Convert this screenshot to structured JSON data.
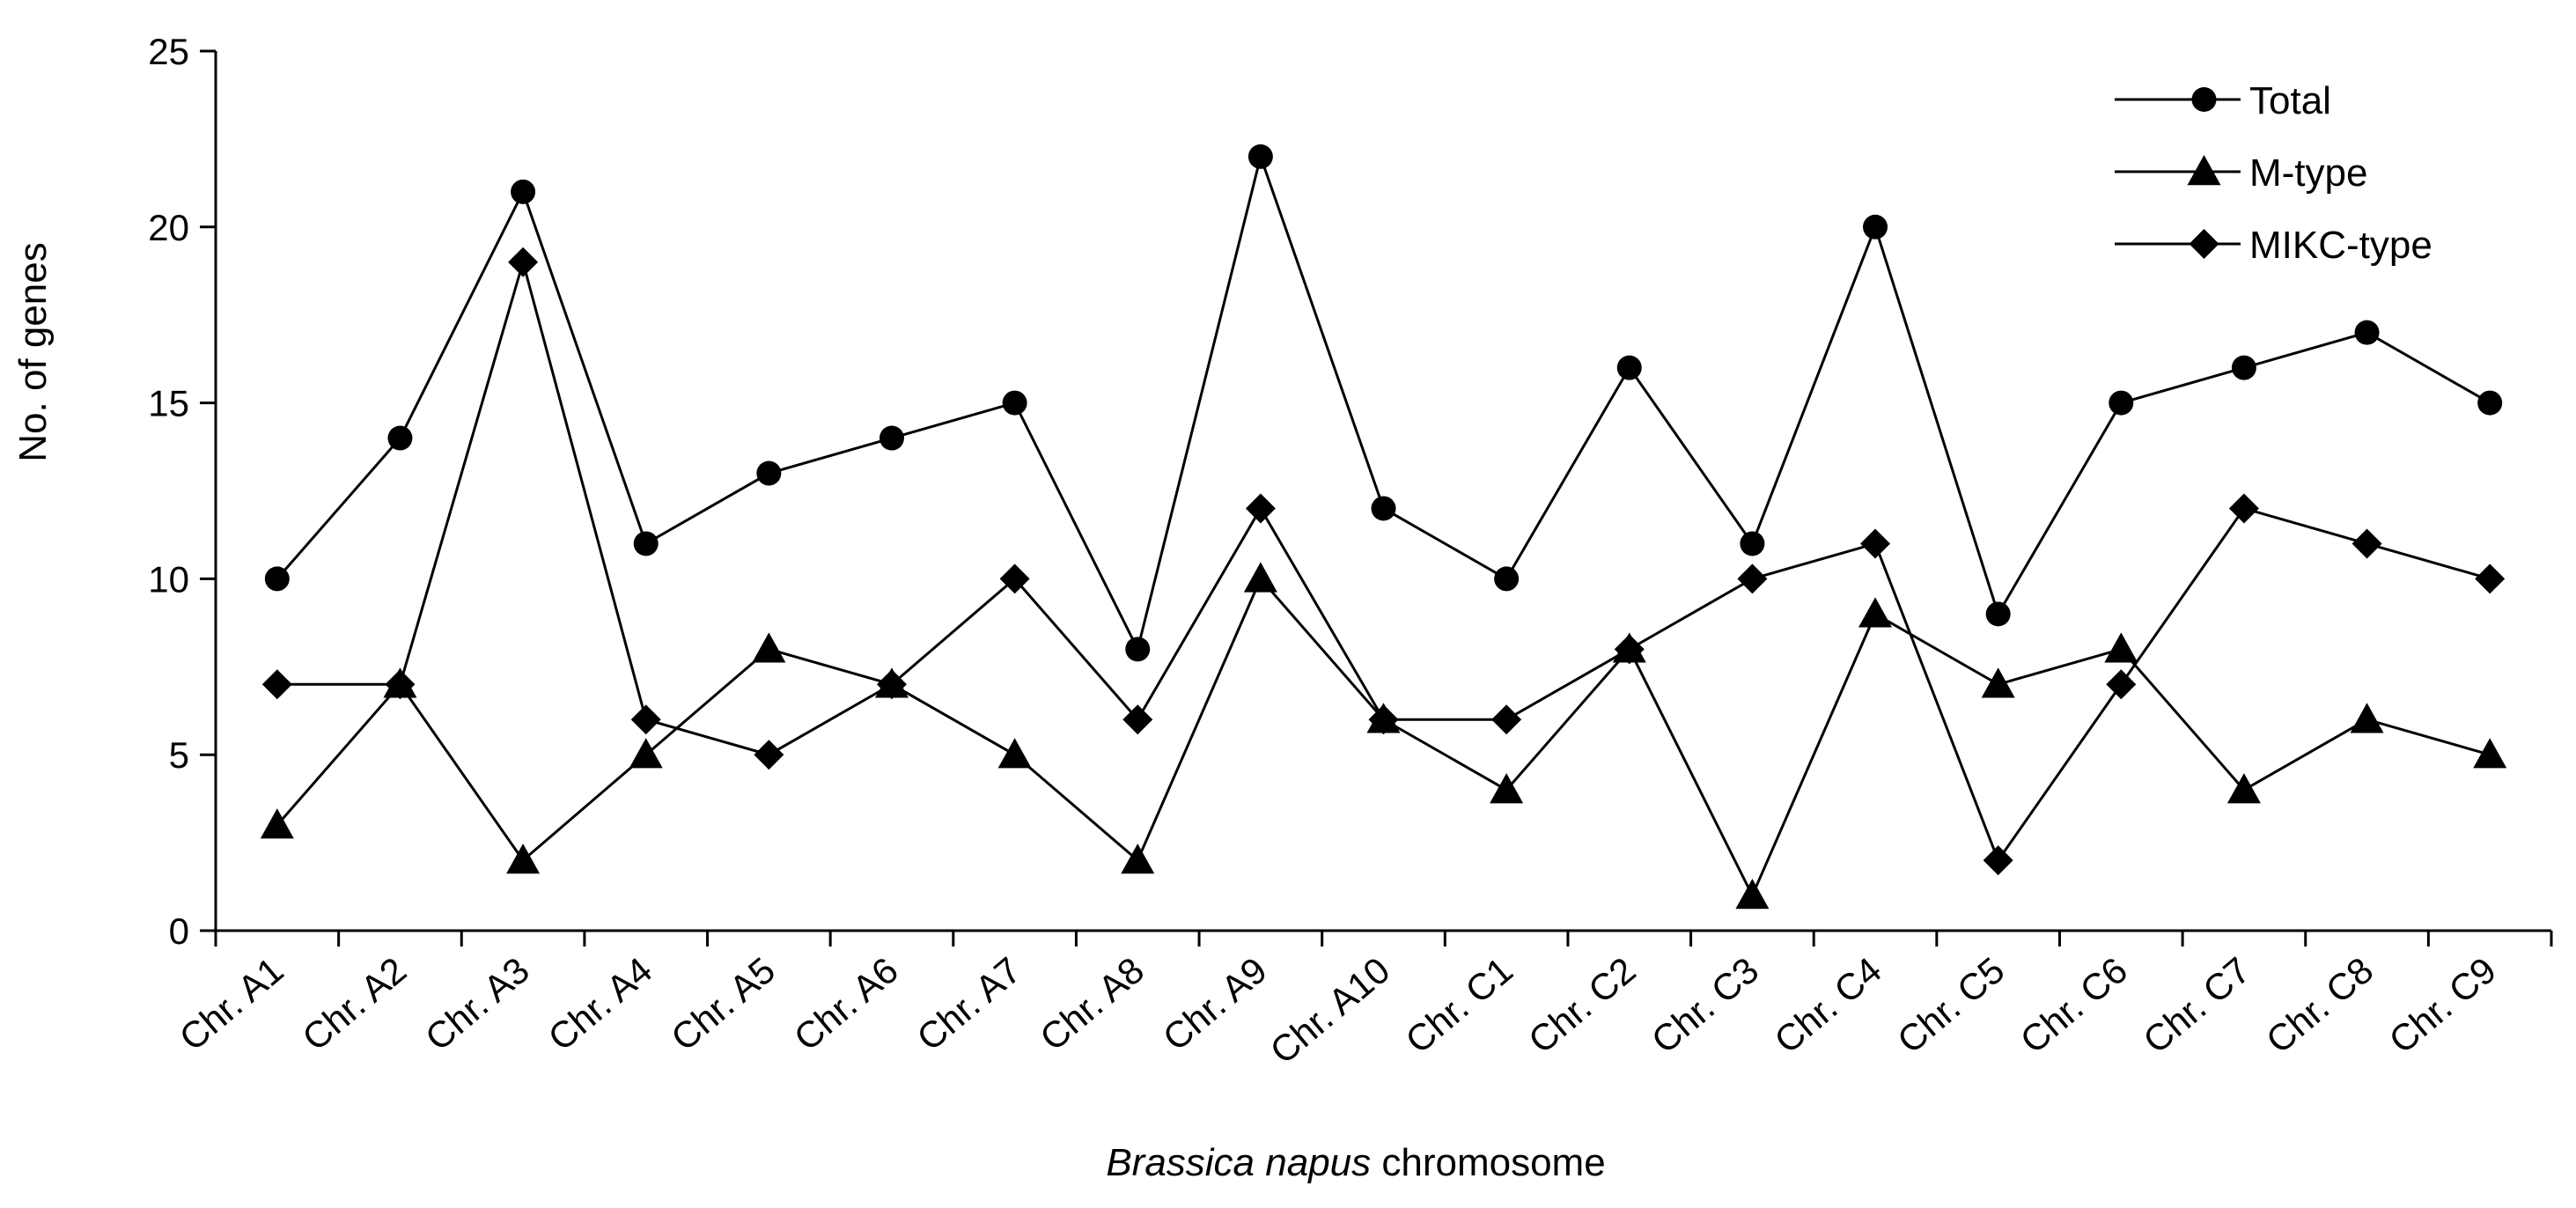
{
  "chart_data": {
    "type": "line",
    "categories": [
      "Chr. A1",
      "Chr. A2",
      "Chr. A3",
      "Chr. A4",
      "Chr. A5",
      "Chr. A6",
      "Chr. A7",
      "Chr. A8",
      "Chr. A9",
      "Chr. A10",
      "Chr. C1",
      "Chr. C2",
      "Chr. C3",
      "Chr. C4",
      "Chr. C5",
      "Chr. C6",
      "Chr. C7",
      "Chr. C8",
      "Chr. C9"
    ],
    "series": [
      {
        "name": "Total",
        "marker": "circle",
        "values": [
          10,
          14,
          21,
          11,
          13,
          14,
          15,
          8,
          22,
          12,
          10,
          16,
          11,
          20,
          9,
          15,
          16,
          17,
          15
        ]
      },
      {
        "name": "M-type",
        "marker": "triangle",
        "values": [
          3,
          7,
          2,
          5,
          8,
          7,
          5,
          2,
          10,
          6,
          4,
          8,
          1,
          9,
          7,
          8,
          4,
          6,
          5
        ]
      },
      {
        "name": "MIKC-type",
        "marker": "diamond",
        "values": [
          7,
          7,
          19,
          6,
          5,
          7,
          10,
          6,
          12,
          6,
          6,
          8,
          10,
          11,
          2,
          7,
          12,
          11,
          10
        ]
      }
    ],
    "xlabel_italic": "Brassica napus",
    "xlabel_rest": " chromosome",
    "ylabel": "No. of genes",
    "ylim": [
      0,
      25
    ],
    "yticks": [
      "0",
      "5",
      "10",
      "15",
      "20",
      "25"
    ],
    "grid": false,
    "legend_position": "top-right",
    "colors": {
      "line": "#000000",
      "marker": "#000000",
      "axis": "#000000"
    }
  }
}
